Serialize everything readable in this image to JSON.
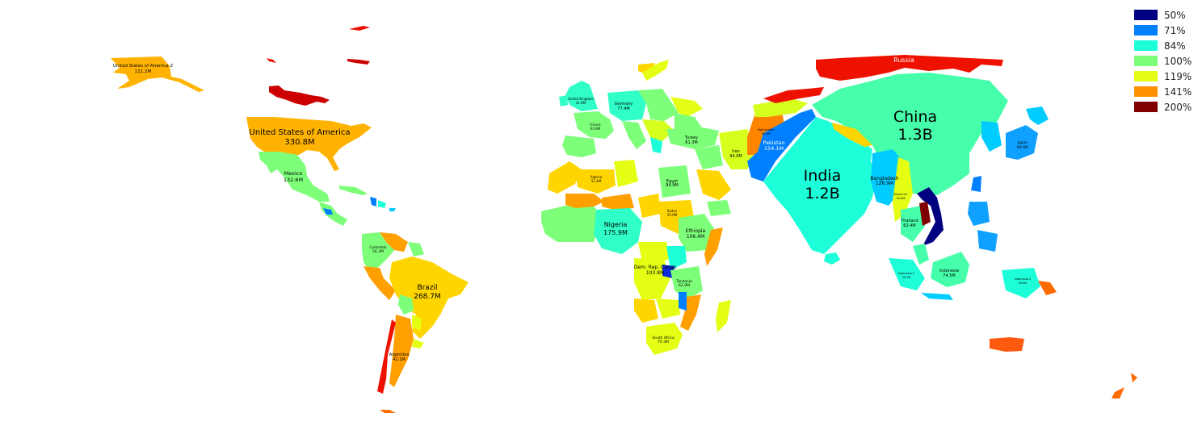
{
  "legend": {
    "items": [
      {
        "label": "50%",
        "color": "#000080"
      },
      {
        "label": "71%",
        "color": "#0080ff"
      },
      {
        "label": "84%",
        "color": "#1dffd9"
      },
      {
        "label": "100%",
        "color": "#7dff7a"
      },
      {
        "label": "119%",
        "color": "#e4ff13"
      },
      {
        "label": "141%",
        "color": "#ff9100"
      },
      {
        "label": "200%",
        "color": "#800000"
      }
    ]
  },
  "regions": [
    {
      "name": "United States of America-2",
      "pop": "111.2M",
      "color": "#ffb300"
    },
    {
      "name": "United States of America",
      "pop": "330.8M",
      "color": "#ffb300"
    },
    {
      "name": "Mexico",
      "pop": "132.6M",
      "color": "#7dff7a"
    },
    {
      "name": "Colombia",
      "pop": "56.3M",
      "color": "#7dff7a"
    },
    {
      "name": "Brazil",
      "pop": "268.7M",
      "color": "#ffd500"
    },
    {
      "name": "Argentina",
      "pop": "42.1M",
      "color": "#ff9f00"
    },
    {
      "name": "United Kingdom",
      "pop": "41.8M",
      "color": "#30ffc7"
    },
    {
      "name": "France",
      "pop": "63.9M",
      "color": "#7dff7a"
    },
    {
      "name": "Germany",
      "pop": "77.4M",
      "color": "#30ffc7"
    },
    {
      "name": "Algeria",
      "pop": "51.4M",
      "color": "#ffd500"
    },
    {
      "name": "Egypt",
      "pop": "94.9M",
      "color": "#7dff7a"
    },
    {
      "name": "Turkey",
      "pop": "81.3M",
      "color": "#7dff7a"
    },
    {
      "name": "Iran",
      "pop": "94.6M",
      "color": "#d7ff1e"
    },
    {
      "name": "Afghanistan",
      "pop": "31.9M",
      "color": "#ff8500"
    },
    {
      "name": "Pakistan",
      "pop": "154.1M",
      "color": "#0080ff"
    },
    {
      "name": "Sudan",
      "pop": "55.9M",
      "color": "#ffd500"
    },
    {
      "name": "Nigeria",
      "pop": "175.9M",
      "color": "#30ffc7"
    },
    {
      "name": "Ethiopia",
      "pop": "106.4M",
      "color": "#7dff7a"
    },
    {
      "name": "Dem. Rep. Congo",
      "pop": "103.8M",
      "color": "#e4ff13"
    },
    {
      "name": "Tanzania",
      "pop": "62.0M",
      "color": "#7dff7a"
    },
    {
      "name": "South Africa",
      "pop": "70.3M",
      "color": "#e4ff13"
    },
    {
      "name": "Russia",
      "pop": "",
      "color": "#ee1100"
    },
    {
      "name": "China",
      "pop": "1.3B",
      "color": "#46ffaa"
    },
    {
      "name": "India",
      "pop": "1.2B",
      "color": "#1dffd9"
    },
    {
      "name": "Bangladesh",
      "pop": "126.9M",
      "color": "#00ccff"
    },
    {
      "name": "Myanmar",
      "pop": "50.8M",
      "color": "#e4ff13"
    },
    {
      "name": "Thailand",
      "pop": "62.4M",
      "color": "#46ffaa"
    },
    {
      "name": "Japan",
      "pop": "69.6M",
      "color": "#10a0ff"
    },
    {
      "name": "Indonesia",
      "pop": "74.5M",
      "color": "#46ffaa"
    },
    {
      "name": "Indonesia-2",
      "pop": "59.7M",
      "color": "#1dffd9"
    },
    {
      "name": "Indonesia-3",
      "pop": "59.6M",
      "color": "#1dffd9"
    }
  ]
}
